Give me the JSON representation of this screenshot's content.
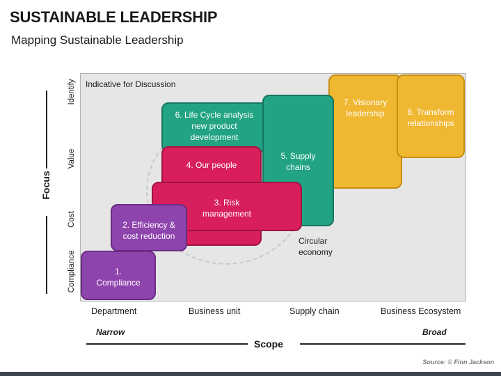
{
  "header": {
    "title": "SUSTAINABLE LEADERSHIP",
    "subtitle": "Mapping Sustainable Leadership"
  },
  "diagram": {
    "note": "Indicative for Discussion",
    "y_axis_title": "Focus",
    "y_levels": [
      "Identify",
      "Value",
      "Cost",
      "Compliance"
    ],
    "x_axis_title": "Scope",
    "x_levels": [
      "Department",
      "Business unit",
      "Supply chain",
      "Business Ecosystem"
    ],
    "x_left": "Narrow",
    "x_right": "Broad",
    "circle_label_1": "Circular",
    "circle_label_2": "economy",
    "boxes": {
      "b1": [
        "1.",
        "Compliance"
      ],
      "b2": [
        "2. Efficiency &",
        "cost reduction"
      ],
      "b3": [
        "3. Risk",
        "management"
      ],
      "b4": [
        "4. Our people"
      ],
      "b5": [
        "5. Supply",
        "chains"
      ],
      "b6": [
        "6. Life Cycle analysis",
        "new product",
        "development"
      ],
      "b7": [
        "7. Visionary",
        "leadership"
      ],
      "b8": [
        "8. Transform",
        "relationships"
      ]
    },
    "colors": {
      "purple": "#8e44ad",
      "teal": "#22a384",
      "red": "#d81e5b",
      "yellow": "#f0b731"
    }
  },
  "footer": {
    "source": "Source: © Finn Jackson"
  }
}
